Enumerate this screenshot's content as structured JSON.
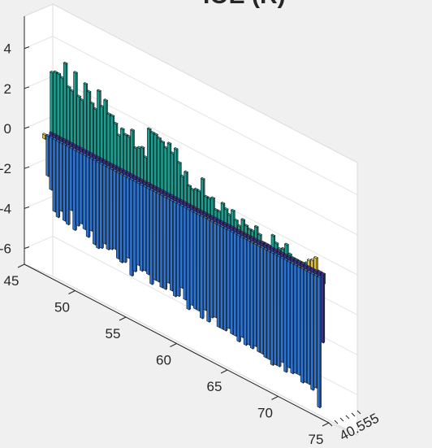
{
  "figure": {
    "background": "#f0f0f0",
    "title_fragment": "IOE (R)"
  },
  "chart_data": {
    "type": "bar3",
    "title": "",
    "xlabel": "",
    "ylabel": "",
    "zlabel": "",
    "grid": true,
    "legend": "none",
    "x_ticks": [
      {
        "value": 45,
        "label": "45"
      },
      {
        "value": 50,
        "label": "50"
      },
      {
        "value": 55,
        "label": "55"
      },
      {
        "value": 60,
        "label": "60"
      },
      {
        "value": 65,
        "label": "65"
      },
      {
        "value": 70,
        "label": "70"
      },
      {
        "value": 75,
        "label": "75"
      }
    ],
    "z_ticks": [
      {
        "value": 4,
        "label": "4"
      },
      {
        "value": 2,
        "label": "2"
      },
      {
        "value": 0,
        "label": "0"
      },
      {
        "value": -2,
        "label": "-2"
      },
      {
        "value": -4,
        "label": "-4"
      },
      {
        "value": -6,
        "label": "-6"
      }
    ],
    "depth_tick_text": "40.555",
    "xlim": [
      45,
      75
    ],
    "zlim": [
      -7,
      5.5
    ],
    "x_start": 46.8,
    "x_step": 0.33,
    "series": [
      {
        "color": "#1a9e8f",
        "values": [
          3.0,
          3.1,
          3.1,
          3.0,
          3.8,
          2.7,
          2.6,
          3.6,
          2.5,
          2.4,
          3.3,
          3.0,
          2.5,
          2.3,
          3.3,
          2.6,
          3.0,
          2.4,
          2.4,
          2.1,
          1.6,
          2.0,
          1.8,
          1.8,
          2.2,
          1.4,
          1.5,
          1.6,
          1.2,
          2.7,
          2.6,
          2.6,
          2.5,
          2.4,
          2.2,
          2.5,
          2.1,
          2.4,
          1.8,
          1.2,
          1.5,
          0.9,
          0.8,
          0.9,
          0.9,
          1.6,
          0.8,
          0.8,
          0.9,
          0.4,
          0.4,
          0.9,
          0.7,
          0.5,
          0.8,
          0.4,
          0.2,
          0.6,
          0.4,
          0.3,
          0.3,
          0.6,
          0.3,
          -0.1,
          -0.3,
          -0.1,
          0.6,
          0.3,
          0.1,
          0.2,
          0.5,
          0.1,
          -0.3,
          -0.4,
          -0.1,
          -0.6,
          0.1,
          -0.2,
          0.0,
          -0.9,
          -1.0,
          -0.5
        ]
      },
      {
        "color": "#3b2e95",
        "values": [
          -0.6,
          -1.4,
          -1.4,
          -1.2,
          -1.6,
          -1.6,
          -1.2,
          -1.9,
          -1.8,
          -1.4,
          -1.9,
          -1.6,
          -1.8,
          -1.8,
          -2.0,
          -1.9,
          -1.6,
          -1.5,
          -1.9,
          -2.1,
          -1.5,
          -1.9,
          -1.8,
          -1.9,
          -2.0,
          -1.6,
          -1.7,
          -2.1,
          -1.7,
          -1.8,
          -2.3,
          -2.3,
          -2.0,
          -2.1,
          -2.0,
          -1.6,
          -2.1,
          -2.0,
          -2.3,
          -2.1,
          -1.9,
          -2.3,
          -2.1,
          -2.0,
          -2.6,
          -2.3,
          -2.7,
          -2.5,
          -2.3,
          -2.2,
          -1.9,
          -2.3,
          -2.5,
          -2.7,
          -2.5,
          -2.4,
          -2.7,
          -2.5,
          -2.8,
          -2.6,
          -2.7,
          -2.3,
          -2.6,
          -2.9,
          -2.5,
          -2.5,
          -2.7,
          -2.9,
          -2.6,
          -2.7,
          -3.0,
          -3.0,
          -2.5,
          -2.7,
          -3.0,
          -3.2,
          -2.8,
          -2.8,
          -2.8,
          -3.1,
          -2.9,
          -3.4
        ]
      },
      {
        "color": "#2a74d6",
        "values": [
          -2.0,
          -2.6,
          -3.6,
          -3.8,
          -3.4,
          -3.8,
          -3.9,
          -3.1,
          -4.0,
          -3.7,
          -3.5,
          -3.7,
          -4.0,
          -3.6,
          -4.2,
          -4.3,
          -4.2,
          -3.9,
          -4.1,
          -4.0,
          -3.9,
          -4.3,
          -4.4,
          -4.3,
          -4.0,
          -4.8,
          -4.5,
          -4.1,
          -4.3,
          -4.2,
          -4.3,
          -4.7,
          -4.4,
          -4.4,
          -4.6,
          -4.6,
          -4.2,
          -4.5,
          -4.7,
          -4.6,
          -4.1,
          -4.6,
          -5.0,
          -4.7,
          -4.8,
          -4.8,
          -5.1,
          -4.6,
          -5.1,
          -4.8,
          -4.7,
          -5.1,
          -5.1,
          -5.1,
          -4.9,
          -5.1,
          -5.1,
          -5.3,
          -5.0,
          -5.3,
          -5.2,
          -5.3,
          -5.1,
          -5.3,
          -5.3,
          -5.4,
          -5.4,
          -5.6,
          -5.5,
          -5.5,
          -5.2,
          -5.6,
          -5.3,
          -5.5,
          -5.4,
          -5.4,
          -5.7,
          -5.6,
          -5.6,
          -5.8,
          -5.6,
          -6.5
        ]
      },
      {
        "color": "#e0c23c",
        "values": [
          0.2,
          0.15,
          0.2,
          0.15,
          0.2,
          0.2,
          0.2,
          0.15,
          0.2,
          0.2,
          0.15,
          0.2,
          0.2,
          0.15,
          0.2,
          0.2,
          0.15,
          0.2,
          0.2,
          0.2,
          0.15,
          0.2,
          0.2,
          0.15,
          0.2,
          0.2,
          0.2,
          0.15,
          0.2,
          0.2,
          0.15,
          0.2,
          0.2,
          0.2,
          0.15,
          0.2,
          0.2,
          0.15,
          0.2,
          0.2,
          0.2,
          0.15,
          0.2,
          0.2,
          0.15,
          0.2,
          0.2,
          0.2,
          0.15,
          0.2,
          0.2,
          0.15,
          0.2,
          0.2,
          0.2,
          0.15,
          0.2,
          0.2,
          0.15,
          0.2,
          0.2,
          0.2,
          0.15,
          0.2,
          0.2,
          0.15,
          0.2,
          0.2,
          0.2,
          0.15,
          0.2,
          0.2,
          0.15,
          0.2,
          0.2,
          0.2,
          0.15,
          0.2,
          0.3,
          0.8,
          0.9,
          1.1
        ]
      }
    ]
  }
}
